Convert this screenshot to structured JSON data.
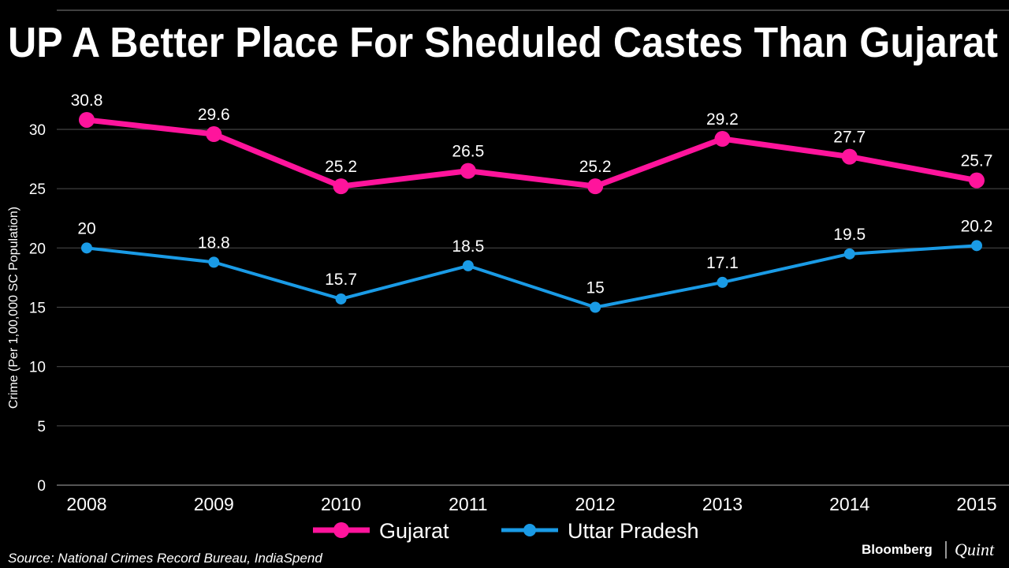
{
  "chart_data": {
    "type": "line",
    "title": "UP A Better Place For Sheduled Castes Than Gujarat",
    "xlabel": "",
    "ylabel": "Crime (Per 1,00,000 SC Population)",
    "ylim": [
      0,
      30
    ],
    "yticks": [
      "0",
      "5",
      "10",
      "15",
      "20",
      "25",
      "30"
    ],
    "categories": [
      "2008",
      "2009",
      "2010",
      "2011",
      "2012",
      "2013",
      "2014",
      "2015"
    ],
    "grid": true,
    "legend_placement": "bottom-center",
    "series": [
      {
        "name": "Gujarat",
        "color": "#ff149c",
        "values": [
          30.8,
          29.6,
          25.2,
          26.5,
          25.2,
          29.2,
          27.7,
          25.7
        ],
        "labels": [
          "30.8",
          "29.6",
          "25.2",
          "26.5",
          "25.2",
          "29.2",
          "27.7",
          "25.7"
        ]
      },
      {
        "name": "Uttar Pradesh",
        "color": "#1a9be6",
        "values": [
          20,
          18.8,
          15.7,
          18.5,
          15,
          17.1,
          19.5,
          20.2
        ],
        "labels": [
          "20",
          "18.8",
          "15.7",
          "18.5",
          "15",
          "17.1",
          "19.5",
          "20.2"
        ]
      }
    ]
  },
  "source": "Source: National Crimes Record Bureau, IndiaSpend",
  "logo": {
    "brand1": "Bloomberg",
    "brand2": "Quint"
  }
}
